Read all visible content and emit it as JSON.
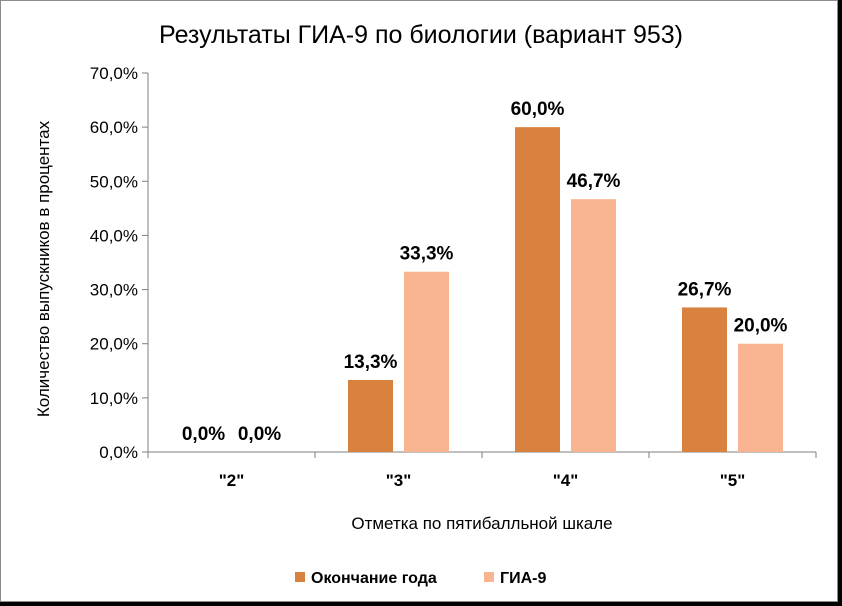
{
  "colors": {
    "series1": "#d9823f",
    "series2": "#f9b591",
    "axis": "#7f7f7f"
  },
  "chart_data": {
    "type": "bar",
    "title": "Результаты ГИА-9 по биологии (вариант 953)",
    "xlabel": "Отметка по пятибалльной шкале",
    "ylabel": "Количество выпускников в процентах",
    "categories": [
      "\"2\"",
      "\"3\"",
      "\"4\"",
      "\"5\""
    ],
    "ylim": [
      0,
      70
    ],
    "yticks": [
      0,
      10,
      20,
      30,
      40,
      50,
      60,
      70
    ],
    "ytick_labels": [
      "0,0%",
      "10,0%",
      "20,0%",
      "30,0%",
      "40,0%",
      "50,0%",
      "60,0%",
      "70,0%"
    ],
    "grid": false,
    "legend_position": "bottom",
    "series": [
      {
        "name": "Окончание года",
        "values": [
          0.0,
          13.3,
          60.0,
          26.7
        ],
        "labels": [
          "0,0%",
          "13,3%",
          "60,0%",
          "26,7%"
        ]
      },
      {
        "name": "ГИА-9",
        "values": [
          0.0,
          33.3,
          46.7,
          20.0
        ],
        "labels": [
          "0,0%",
          "33,3%",
          "46,7%",
          "20,0%"
        ]
      }
    ]
  }
}
